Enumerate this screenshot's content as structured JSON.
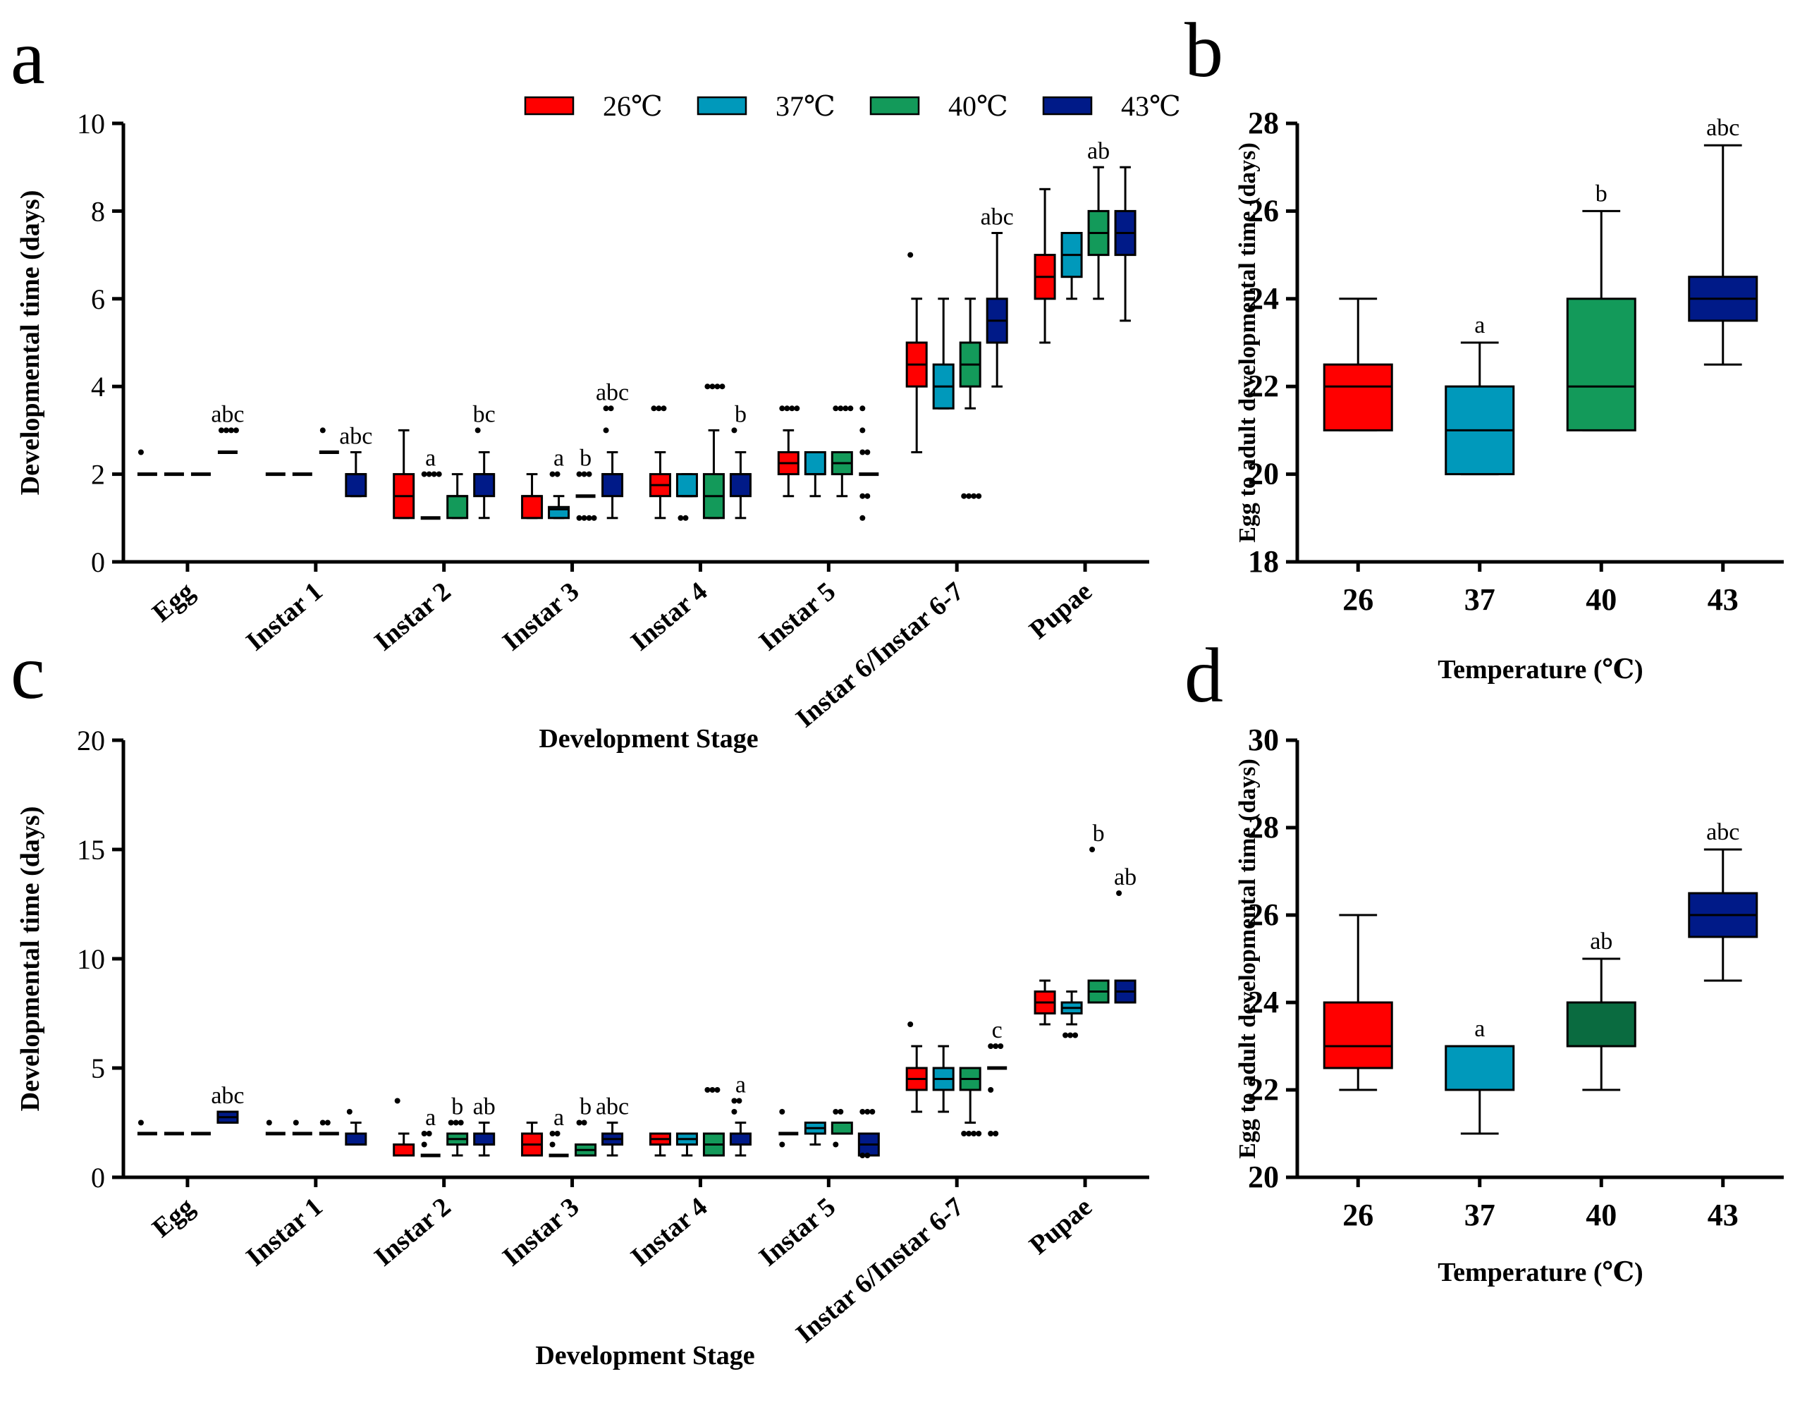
{
  "legend": [
    {
      "label": "26℃",
      "color": "#ff0000"
    },
    {
      "label": "37℃",
      "color": "#0099bb"
    },
    {
      "label": "40℃",
      "color": "#139a5a"
    },
    {
      "label": "43℃",
      "color": "#001a88"
    }
  ],
  "chart_data": [
    {
      "panel": "a",
      "type": "box",
      "xlabel": "Development Stage",
      "ylabel": "Developmental time (days)",
      "ylim": [
        0,
        10
      ],
      "yticks": [
        "0",
        "2",
        "4",
        "6",
        "8",
        "10"
      ],
      "categories": [
        "Egg",
        "Instar 1",
        "Instar 2",
        "Instar 3",
        "Instar 4",
        "Instar 5",
        "Instar 6/Instar 6-7",
        "Pupae"
      ],
      "series_names": [
        "26℃",
        "37℃",
        "40℃",
        "43℃"
      ],
      "groups": [
        [
          {
            "min": 2,
            "q1": 2,
            "median": 2,
            "q3": 2,
            "max": 2,
            "outliers": [
              2.5
            ]
          },
          {
            "min": 2,
            "q1": 2,
            "median": 2,
            "q3": 2,
            "max": 2,
            "outliers": []
          },
          {
            "min": 2,
            "q1": 2,
            "median": 2,
            "q3": 2,
            "max": 2,
            "outliers": []
          },
          {
            "min": 2.5,
            "q1": 2.5,
            "median": 2.5,
            "q3": 2.5,
            "max": 2.5,
            "outliers": [
              3,
              3,
              3,
              3
            ],
            "sig": "abc"
          }
        ],
        [
          {
            "min": 2,
            "q1": 2,
            "median": 2,
            "q3": 2,
            "max": 2,
            "outliers": []
          },
          {
            "min": 2,
            "q1": 2,
            "median": 2,
            "q3": 2,
            "max": 2,
            "outliers": []
          },
          {
            "min": 2.5,
            "q1": 2.5,
            "median": 2.5,
            "q3": 2.5,
            "max": 2.5,
            "outliers": [
              3
            ]
          },
          {
            "min": 1.5,
            "q1": 1.5,
            "median": 2,
            "q3": 2,
            "max": 2.5,
            "outliers": [],
            "sig": "abc"
          }
        ],
        [
          {
            "min": 1,
            "q1": 1,
            "median": 1.5,
            "q3": 2,
            "max": 3,
            "outliers": []
          },
          {
            "min": 1,
            "q1": 1,
            "median": 1,
            "q3": 1,
            "max": 1,
            "outliers": [
              2,
              2,
              2,
              2
            ],
            "sig": "a"
          },
          {
            "min": 1,
            "q1": 1,
            "median": 1.5,
            "q3": 1.5,
            "max": 2,
            "outliers": []
          },
          {
            "min": 1,
            "q1": 1.5,
            "median": 2,
            "q3": 2,
            "max": 2.5,
            "outliers": [
              3
            ],
            "sig": "bc"
          }
        ],
        [
          {
            "min": 1,
            "q1": 1,
            "median": 1.5,
            "q3": 1.5,
            "max": 2,
            "outliers": []
          },
          {
            "min": 1,
            "q1": 1,
            "median": 1.2,
            "q3": 1.25,
            "max": 1.5,
            "outliers": [
              2,
              2
            ],
            "sig": "a"
          },
          {
            "min": 1.5,
            "q1": 1.5,
            "median": 1.5,
            "q3": 1.5,
            "max": 1.5,
            "outliers": [
              2,
              2,
              2,
              1,
              1,
              1,
              1
            ],
            "sig": "b"
          },
          {
            "min": 1,
            "q1": 1.5,
            "median": 2,
            "q3": 2,
            "max": 2.5,
            "outliers": [
              3,
              3.5,
              3.5
            ],
            "sig": "abc"
          }
        ],
        [
          {
            "min": 1,
            "q1": 1.5,
            "median": 1.75,
            "q3": 2,
            "max": 2.5,
            "outliers": [
              3.5,
              3.5,
              3.5
            ]
          },
          {
            "min": 1.5,
            "q1": 1.5,
            "median": 1.5,
            "q3": 2,
            "max": 2,
            "outliers": [
              1,
              1
            ]
          },
          {
            "min": 1,
            "q1": 1,
            "median": 1.5,
            "q3": 2,
            "max": 3,
            "outliers": [
              4,
              4,
              4,
              4
            ]
          },
          {
            "min": 1,
            "q1": 1.5,
            "median": 2,
            "q3": 2,
            "max": 2.5,
            "outliers": [
              3
            ],
            "sig": "b"
          }
        ],
        [
          {
            "min": 1.5,
            "q1": 2,
            "median": 2.25,
            "q3": 2.5,
            "max": 3,
            "outliers": [
              3.5,
              3.5,
              3.5,
              3.5
            ]
          },
          {
            "min": 1.5,
            "q1": 2,
            "median": 2,
            "q3": 2.5,
            "max": 2.5,
            "outliers": []
          },
          {
            "min": 1.5,
            "q1": 2,
            "median": 2.25,
            "q3": 2.5,
            "max": 2.5,
            "outliers": [
              3.5,
              3.5,
              3.5,
              3.5
            ]
          },
          {
            "min": 2,
            "q1": 2,
            "median": 2,
            "q3": 2,
            "max": 2,
            "outliers": [
              3.5,
              3,
              2.5,
              2.5,
              1.5,
              1.5,
              1
            ]
          }
        ],
        [
          {
            "min": 2.5,
            "q1": 4,
            "median": 4.5,
            "q3": 5,
            "max": 6,
            "outliers": [
              7
            ]
          },
          {
            "min": 3.5,
            "q1": 3.5,
            "median": 4,
            "q3": 4.5,
            "max": 6,
            "outliers": []
          },
          {
            "min": 3.5,
            "q1": 4,
            "median": 4.5,
            "q3": 5,
            "max": 6,
            "outliers": [
              1.5,
              1.5,
              1.5,
              1.5
            ]
          },
          {
            "min": 4,
            "q1": 5,
            "median": 5.5,
            "q3": 6,
            "max": 7.5,
            "outliers": [],
            "sig": "abc"
          }
        ],
        [
          {
            "min": 5,
            "q1": 6,
            "median": 6.5,
            "q3": 7,
            "max": 8.5,
            "outliers": []
          },
          {
            "min": 6,
            "q1": 6.5,
            "median": 7,
            "q3": 7.5,
            "max": 7.5,
            "outliers": []
          },
          {
            "min": 6,
            "q1": 7,
            "median": 7.5,
            "q3": 8,
            "max": 9,
            "outliers": [],
            "sig": "ab"
          },
          {
            "min": 5.5,
            "q1": 7,
            "median": 7.5,
            "q3": 8,
            "max": 9,
            "outliers": []
          }
        ]
      ]
    },
    {
      "panel": "b",
      "type": "box",
      "xlabel": "Temperature (℃)",
      "ylabel": "Egg to adult developmental time (days)",
      "ylim": [
        18,
        28
      ],
      "yticks": [
        "18",
        "20",
        "22",
        "24",
        "26",
        "28"
      ],
      "categories": [
        "26",
        "37",
        "40",
        "43"
      ],
      "boxes": [
        {
          "min": 21,
          "q1": 21,
          "median": 22,
          "q3": 22.5,
          "max": 24
        },
        {
          "min": 20,
          "q1": 20,
          "median": 21,
          "q3": 22,
          "max": 23,
          "sig": "a"
        },
        {
          "min": 21,
          "q1": 21,
          "median": 22,
          "q3": 24,
          "max": 26,
          "sig": "b"
        },
        {
          "min": 22.5,
          "q1": 23.5,
          "median": 24,
          "q3": 24.5,
          "max": 27.5,
          "sig": "abc"
        }
      ]
    },
    {
      "panel": "c",
      "type": "box",
      "xlabel": "Development Stage",
      "ylabel": "Developmental time (days)",
      "ylim": [
        0,
        20
      ],
      "yticks": [
        "0",
        "5",
        "10",
        "15",
        "20"
      ],
      "categories": [
        "Egg",
        "Instar 1",
        "Instar 2",
        "Instar 3",
        "Instar 4",
        "Instar 5",
        "Instar 6/Instar 6-7",
        "Pupae"
      ],
      "series_names": [
        "26℃",
        "37℃",
        "40℃",
        "43℃"
      ],
      "groups": [
        [
          {
            "min": 2,
            "q1": 2,
            "median": 2,
            "q3": 2,
            "max": 2,
            "outliers": [
              2.5
            ]
          },
          {
            "min": 2,
            "q1": 2,
            "median": 2,
            "q3": 2,
            "max": 2,
            "outliers": []
          },
          {
            "min": 2,
            "q1": 2,
            "median": 2,
            "q3": 2,
            "max": 2,
            "outliers": []
          },
          {
            "min": 2.5,
            "q1": 2.5,
            "median": 2.75,
            "q3": 3,
            "max": 3,
            "outliers": [],
            "sig": "abc"
          }
        ],
        [
          {
            "min": 2,
            "q1": 2,
            "median": 2,
            "q3": 2,
            "max": 2,
            "outliers": [
              2.5
            ]
          },
          {
            "min": 2,
            "q1": 2,
            "median": 2,
            "q3": 2,
            "max": 2,
            "outliers": [
              2.5
            ]
          },
          {
            "min": 2,
            "q1": 2,
            "median": 2,
            "q3": 2,
            "max": 2,
            "outliers": [
              2.5,
              2.5
            ]
          },
          {
            "min": 1.5,
            "q1": 1.5,
            "median": 2,
            "q3": 2,
            "max": 2.5,
            "outliers": [
              3
            ]
          }
        ],
        [
          {
            "min": 1,
            "q1": 1,
            "median": 1.5,
            "q3": 1.5,
            "max": 2,
            "outliers": [
              3.5
            ]
          },
          {
            "min": 1,
            "q1": 1,
            "median": 1,
            "q3": 1,
            "max": 1,
            "outliers": [
              2,
              2,
              1.5
            ],
            "sig": "a"
          },
          {
            "min": 1,
            "q1": 1.5,
            "median": 1.75,
            "q3": 2,
            "max": 2,
            "outliers": [
              2.5,
              2.5,
              2.5
            ],
            "sig": "b"
          },
          {
            "min": 1,
            "q1": 1.5,
            "median": 2,
            "q3": 2,
            "max": 2.5,
            "outliers": [],
            "sig": "ab"
          }
        ],
        [
          {
            "min": 1,
            "q1": 1,
            "median": 1.5,
            "q3": 2,
            "max": 2.5,
            "outliers": []
          },
          {
            "min": 1,
            "q1": 1,
            "median": 1,
            "q3": 1,
            "max": 1,
            "outliers": [
              2,
              2,
              1.5
            ],
            "sig": "a"
          },
          {
            "min": 1,
            "q1": 1,
            "median": 1.25,
            "q3": 1.5,
            "max": 1.5,
            "outliers": [
              2.5,
              2.5
            ],
            "sig": "b"
          },
          {
            "min": 1,
            "q1": 1.5,
            "median": 1.75,
            "q3": 2,
            "max": 2.5,
            "outliers": [],
            "sig": "abc"
          }
        ],
        [
          {
            "min": 1,
            "q1": 1.5,
            "median": 1.75,
            "q3": 2,
            "max": 2,
            "outliers": []
          },
          {
            "min": 1,
            "q1": 1.5,
            "median": 1.75,
            "q3": 2,
            "max": 2,
            "outliers": []
          },
          {
            "min": 1,
            "q1": 1,
            "median": 1.5,
            "q3": 2,
            "max": 2,
            "outliers": [
              4,
              4,
              4
            ]
          },
          {
            "min": 1,
            "q1": 1.5,
            "median": 2,
            "q3": 2,
            "max": 2.5,
            "outliers": [
              3,
              3.5,
              3.5
            ],
            "sig": "a"
          }
        ],
        [
          {
            "min": 2,
            "q1": 2,
            "median": 2,
            "q3": 2,
            "max": 2,
            "outliers": [
              3,
              1.5
            ]
          },
          {
            "min": 1.5,
            "q1": 2,
            "median": 2.25,
            "q3": 2.5,
            "max": 2.5,
            "outliers": []
          },
          {
            "min": 2,
            "q1": 2,
            "median": 2,
            "q3": 2.5,
            "max": 2.5,
            "outliers": [
              3,
              3,
              1.5
            ]
          },
          {
            "min": 1,
            "q1": 1,
            "median": 1.5,
            "q3": 2,
            "max": 2,
            "outliers": [
              3,
              3,
              3,
              1,
              1
            ]
          }
        ],
        [
          {
            "min": 3,
            "q1": 4,
            "median": 4.5,
            "q3": 5,
            "max": 6,
            "outliers": [
              7
            ]
          },
          {
            "min": 3,
            "q1": 4,
            "median": 4.5,
            "q3": 5,
            "max": 6,
            "outliers": []
          },
          {
            "min": 2.5,
            "q1": 4,
            "median": 4.5,
            "q3": 5,
            "max": 5,
            "outliers": [
              2,
              2,
              2,
              2
            ]
          },
          {
            "min": 5,
            "q1": 5,
            "median": 5,
            "q3": 5,
            "max": 5,
            "outliers": [
              6,
              6,
              6,
              4,
              2,
              2
            ],
            "sig": "c"
          }
        ],
        [
          {
            "min": 7,
            "q1": 7.5,
            "median": 8,
            "q3": 8.5,
            "max": 9,
            "outliers": []
          },
          {
            "min": 7,
            "q1": 7.5,
            "median": 7.75,
            "q3": 8,
            "max": 8.5,
            "outliers": [
              6.5,
              6.5,
              6.5
            ]
          },
          {
            "min": 8,
            "q1": 8,
            "median": 8.5,
            "q3": 9,
            "max": 9,
            "outliers": [
              15
            ],
            "sig": "b"
          },
          {
            "min": 8,
            "q1": 8,
            "median": 8.5,
            "q3": 9,
            "max": 9,
            "outliers": [
              13
            ],
            "sig": "ab"
          }
        ]
      ]
    },
    {
      "panel": "d",
      "type": "box",
      "xlabel": "Temperature (℃)",
      "ylabel": "Egg to adult developmental time (days)",
      "ylim": [
        20,
        30
      ],
      "yticks": [
        "20",
        "22",
        "24",
        "26",
        "28",
        "30"
      ],
      "categories": [
        "26",
        "37",
        "40",
        "43"
      ],
      "colors": [
        "#ff0000",
        "#0099bb",
        "#0a6b40",
        "#001a88"
      ],
      "boxes": [
        {
          "min": 22,
          "q1": 22.5,
          "median": 23,
          "q3": 24,
          "max": 26
        },
        {
          "min": 21,
          "q1": 22,
          "median": 22,
          "q3": 23,
          "max": 23,
          "sig": "a"
        },
        {
          "min": 22,
          "q1": 23,
          "median": 24,
          "q3": 24,
          "max": 25,
          "sig": "ab"
        },
        {
          "min": 24.5,
          "q1": 25.5,
          "median": 26,
          "q3": 26.5,
          "max": 27.5,
          "sig": "abc"
        }
      ]
    }
  ]
}
